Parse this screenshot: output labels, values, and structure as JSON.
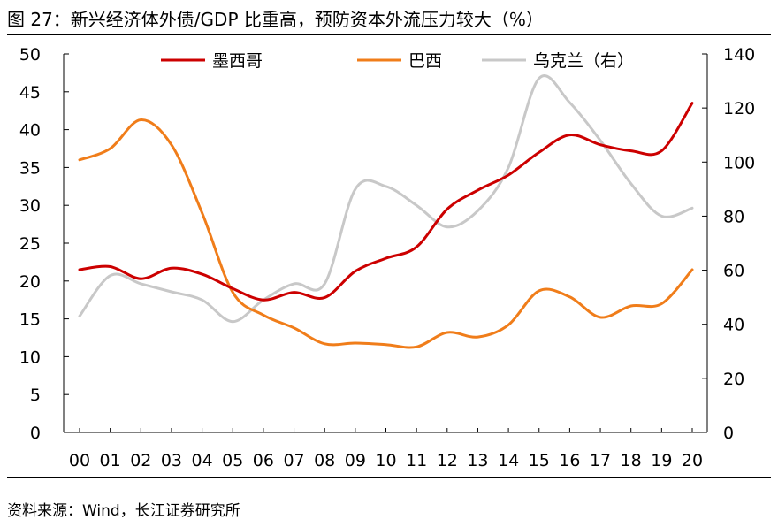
{
  "figure": {
    "title": "图 27：新兴经济体外债/GDP 比重高，预防资本外流压力较大（%）",
    "source": "资料来源：Wind，长江证券研究所"
  },
  "chart_data": {
    "type": "line",
    "categories": [
      "00",
      "01",
      "02",
      "03",
      "04",
      "05",
      "06",
      "07",
      "08",
      "09",
      "10",
      "11",
      "12",
      "13",
      "14",
      "15",
      "16",
      "17",
      "18",
      "19",
      "20"
    ],
    "left_axis": {
      "ylim": [
        0,
        50
      ],
      "ticks": [
        0,
        5,
        10,
        15,
        20,
        25,
        30,
        35,
        40,
        45,
        50
      ]
    },
    "right_axis": {
      "ylim": [
        0,
        140
      ],
      "ticks": [
        0,
        20,
        40,
        60,
        80,
        100,
        120,
        140
      ]
    },
    "legend_position": "top",
    "series": [
      {
        "name": "墨西哥",
        "axis": "left",
        "color": "#cc0000",
        "values": [
          21.5,
          21.9,
          20.3,
          21.7,
          20.9,
          19.0,
          17.5,
          18.5,
          17.8,
          21.3,
          23.0,
          24.5,
          29.5,
          32.0,
          34.0,
          37.0,
          39.3,
          38.0,
          37.2,
          37.2,
          43.5
        ]
      },
      {
        "name": "巴西",
        "axis": "left",
        "color": "#f07d1a",
        "values": [
          36.0,
          37.5,
          41.3,
          38.0,
          29.0,
          18.5,
          15.5,
          13.8,
          11.7,
          11.8,
          11.6,
          11.3,
          13.2,
          12.6,
          14.2,
          18.7,
          17.9,
          15.2,
          16.7,
          17.0,
          21.5
        ]
      },
      {
        "name": "乌克兰（右）",
        "axis": "right",
        "color": "#c8c8c8",
        "values": [
          43,
          58,
          55,
          52,
          49,
          41,
          49,
          55,
          55,
          90,
          91,
          84,
          76,
          82,
          98,
          131,
          122,
          108,
          92,
          80,
          83
        ]
      }
    ]
  }
}
